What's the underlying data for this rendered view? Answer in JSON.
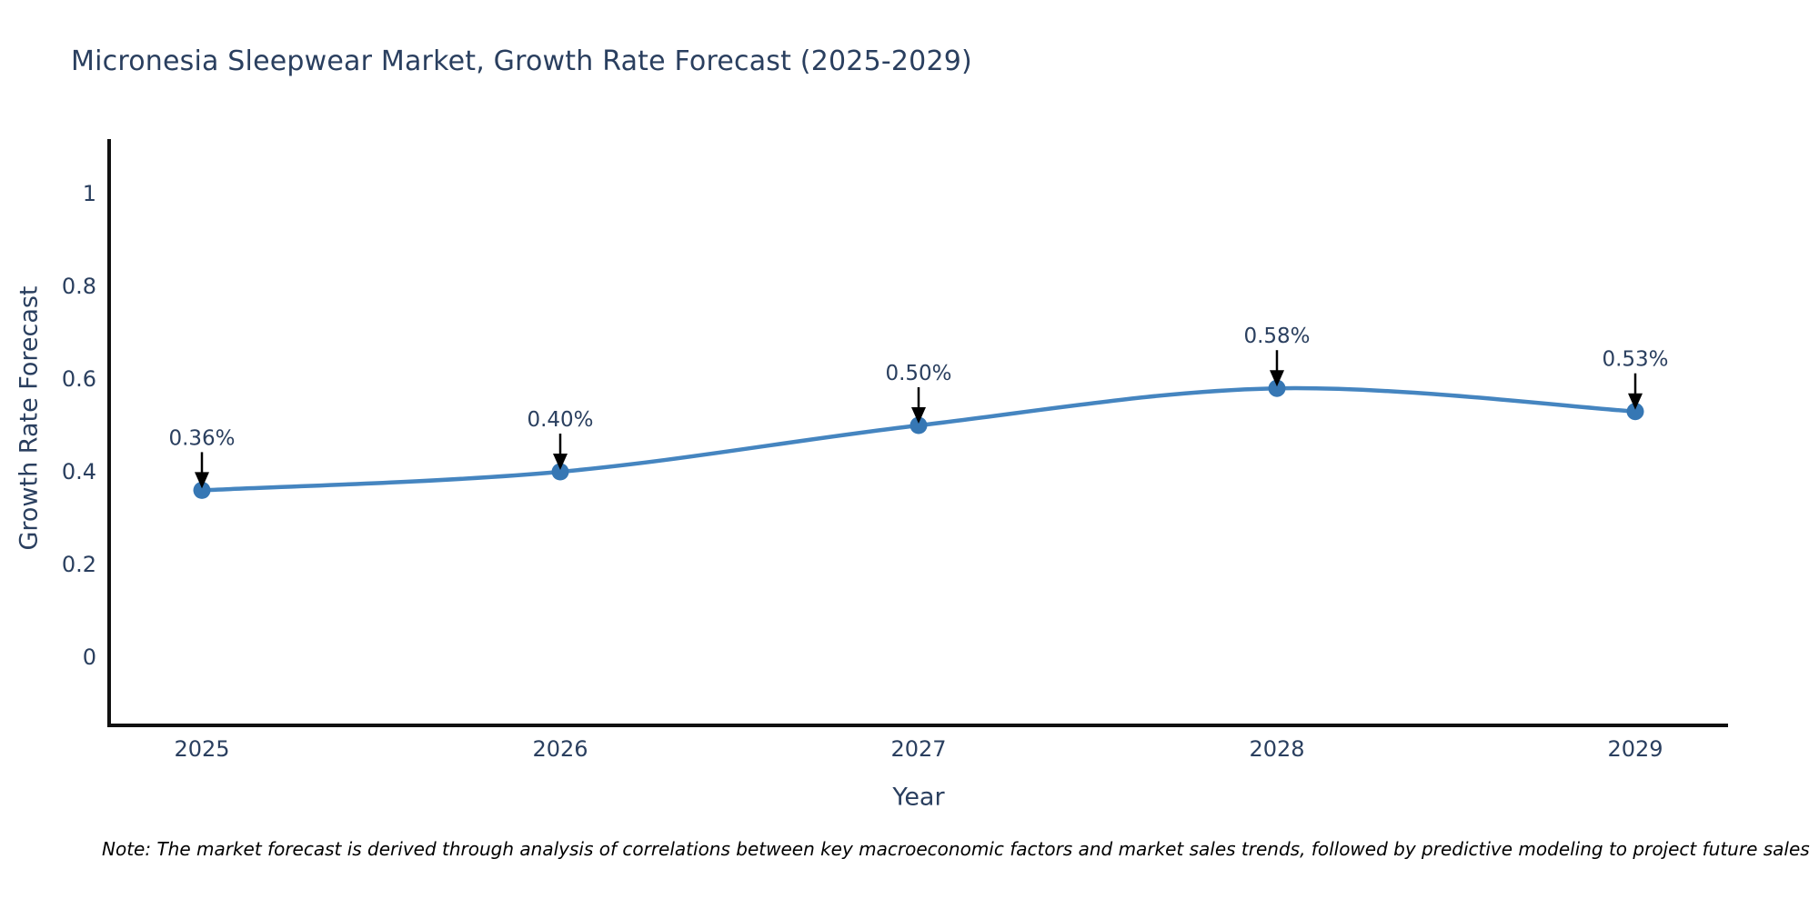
{
  "chart_data": {
    "type": "line",
    "line_shape": "spline",
    "title": "Micronesia Sleepwear Market, Growth Rate Forecast (2025-2029)",
    "xlabel": "Year",
    "ylabel": "Growth Rate Forecast",
    "x": [
      2025,
      2026,
      2027,
      2028,
      2029
    ],
    "xtick_labels": [
      "2025",
      "2026",
      "2027",
      "2028",
      "2029"
    ],
    "series": [
      {
        "name": "Growth Rate Forecast",
        "values": [
          0.36,
          0.4,
          0.5,
          0.58,
          0.53
        ]
      }
    ],
    "point_labels": [
      "0.36%",
      "0.40%",
      "0.50%",
      "0.58%",
      "0.53%"
    ],
    "yticks": [
      0,
      0.2,
      0.4,
      0.6,
      0.8,
      1
    ],
    "ytick_labels": [
      "0",
      "0.2",
      "0.4",
      "0.6",
      "0.8",
      "1"
    ],
    "ylim": [
      -0.15,
      1.11
    ],
    "grid": false,
    "legend": false,
    "colors": {
      "line": "#4585c0",
      "marker": "#3677b4",
      "axis_line": "#111111",
      "tick_text": "#2a3f5f",
      "annotation_text": "#2a3f5f",
      "annotation_arrow": "#000000",
      "background": "#ffffff"
    }
  },
  "note": {
    "text": "Note: The market forecast is derived through analysis of correlations between key macroeconomic factors and market sales trends, followed by predictive modeling to project future sales"
  }
}
